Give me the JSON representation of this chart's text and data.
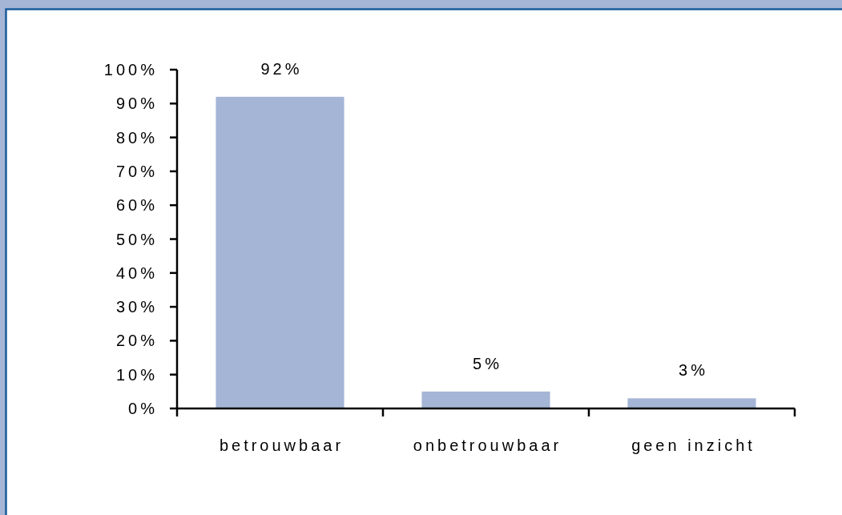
{
  "chart_data": {
    "type": "bar",
    "categories": [
      "betrouwbaar",
      "onbetrouwbaar",
      "geen inzicht"
    ],
    "values": [
      92,
      5,
      3
    ],
    "color": "#a4b5d5",
    "value_labels": [
      "92%",
      "5%",
      "3%"
    ],
    "ylim": [
      0,
      100
    ],
    "yticks": [
      {
        "value": 0,
        "label": "0%"
      },
      {
        "value": 10,
        "label": "10%"
      },
      {
        "value": 20,
        "label": "20%"
      },
      {
        "value": 30,
        "label": "30%"
      },
      {
        "value": 40,
        "label": "40%"
      },
      {
        "value": 50,
        "label": "50%"
      },
      {
        "value": 60,
        "label": "60%"
      },
      {
        "value": 70,
        "label": "70%"
      },
      {
        "value": 80,
        "label": "80%"
      },
      {
        "value": 90,
        "label": "90%"
      },
      {
        "value": 100,
        "label": "100%"
      }
    ]
  }
}
